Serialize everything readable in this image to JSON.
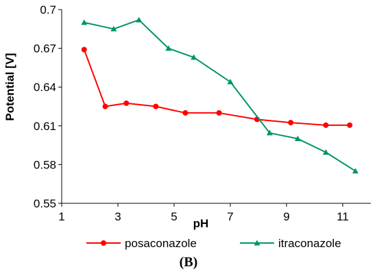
{
  "chart_data": {
    "type": "line",
    "title": "",
    "xlabel": "pH",
    "ylabel": "Potential [V]",
    "xlim": [
      1,
      12
    ],
    "ylim": [
      0.55,
      0.7
    ],
    "x_ticks": [
      1,
      3,
      5,
      7,
      9,
      11
    ],
    "x_tick_labels": [
      "1",
      "3",
      "5",
      "7",
      "9",
      "11"
    ],
    "y_ticks": [
      0.55,
      0.58,
      0.61,
      0.64,
      0.67,
      0.7
    ],
    "y_tick_labels": [
      "0.55",
      "0.58",
      "0.61",
      "0.64",
      "0.67",
      "0.7"
    ],
    "grid": false,
    "legend_position": "bottom",
    "panel_label": "(B)",
    "series": [
      {
        "name": "posaconazole",
        "color": "#ff0000",
        "marker": "circle",
        "x": [
          1.8,
          2.55,
          3.3,
          4.35,
          5.4,
          6.6,
          7.95,
          9.15,
          10.4,
          11.25
        ],
        "y": [
          0.669,
          0.625,
          0.6275,
          0.625,
          0.62,
          0.62,
          0.615,
          0.6125,
          0.6105,
          0.6105
        ]
      },
      {
        "name": "itraconazole",
        "color": "#00946a",
        "marker": "triangle",
        "x": [
          1.8,
          2.85,
          3.75,
          4.8,
          5.7,
          7.0,
          8.4,
          9.4,
          10.4,
          11.45
        ],
        "y": [
          0.69,
          0.685,
          0.692,
          0.67,
          0.663,
          0.644,
          0.6045,
          0.6,
          0.5895,
          0.575
        ]
      }
    ]
  }
}
